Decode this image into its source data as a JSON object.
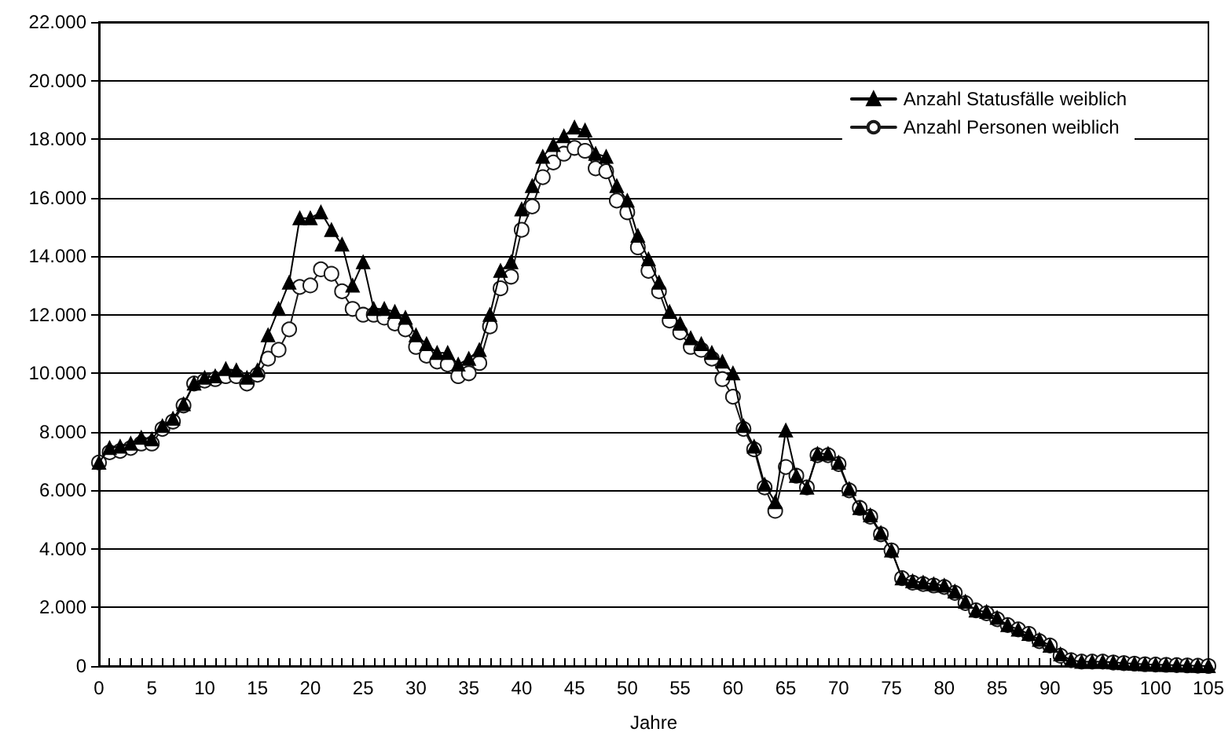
{
  "chart_data": {
    "type": "line",
    "xlabel": "Jahre",
    "x": [
      0,
      1,
      2,
      3,
      4,
      5,
      6,
      7,
      8,
      9,
      10,
      11,
      12,
      13,
      14,
      15,
      16,
      17,
      18,
      19,
      20,
      21,
      22,
      23,
      24,
      25,
      26,
      27,
      28,
      29,
      30,
      31,
      32,
      33,
      34,
      35,
      36,
      37,
      38,
      39,
      40,
      41,
      42,
      43,
      44,
      45,
      46,
      47,
      48,
      49,
      50,
      51,
      52,
      53,
      54,
      55,
      56,
      57,
      58,
      59,
      60,
      61,
      62,
      63,
      64,
      65,
      66,
      67,
      68,
      69,
      70,
      71,
      72,
      73,
      74,
      75,
      76,
      77,
      78,
      79,
      80,
      81,
      82,
      83,
      84,
      85,
      86,
      87,
      88,
      89,
      90,
      91,
      92,
      93,
      94,
      95,
      96,
      97,
      98,
      99,
      100,
      101,
      102,
      103,
      104,
      105
    ],
    "series": [
      {
        "name": "Anzahl Statusfälle weiblich",
        "color": "#000000",
        "marker": "triangle",
        "values": [
          6950,
          7450,
          7500,
          7600,
          7800,
          7750,
          8200,
          8450,
          8950,
          9650,
          9850,
          9900,
          10150,
          10100,
          9850,
          10100,
          11300,
          12200,
          13100,
          15300,
          15300,
          15500,
          14900,
          14400,
          13000,
          13800,
          12200,
          12200,
          12100,
          11900,
          11300,
          11000,
          10700,
          10700,
          10300,
          10500,
          10800,
          12000,
          13500,
          13800,
          15600,
          16400,
          17400,
          17800,
          18100,
          18400,
          18300,
          17500,
          17400,
          16400,
          15900,
          14700,
          13900,
          13100,
          12100,
          11700,
          11200,
          11000,
          10700,
          10400,
          10000,
          8200,
          7500,
          6200,
          5600,
          8050,
          6500,
          6100,
          7250,
          7250,
          6950,
          6050,
          5400,
          5150,
          4550,
          3950,
          3000,
          2900,
          2850,
          2800,
          2750,
          2550,
          2200,
          1900,
          1850,
          1650,
          1400,
          1250,
          1100,
          900,
          700,
          400,
          200,
          150,
          150,
          150,
          130,
          100,
          80,
          60,
          50,
          40,
          30,
          20,
          10,
          0
        ]
      },
      {
        "name": "Anzahl Personen weiblich",
        "color": "#1a1a1a",
        "marker": "circle",
        "values": [
          6950,
          7300,
          7350,
          7450,
          7600,
          7600,
          8100,
          8350,
          8900,
          9650,
          9750,
          9800,
          9900,
          9900,
          9650,
          9950,
          10500,
          10800,
          11500,
          12950,
          13000,
          13550,
          13400,
          12800,
          12200,
          12000,
          12000,
          11900,
          11700,
          11500,
          10900,
          10600,
          10400,
          10300,
          9900,
          10000,
          10350,
          11600,
          12900,
          13300,
          14900,
          15700,
          16700,
          17200,
          17500,
          17700,
          17600,
          17000,
          16900,
          15900,
          15500,
          14300,
          13500,
          12800,
          11800,
          11400,
          10900,
          10800,
          10500,
          9800,
          9200,
          8100,
          7400,
          6100,
          5300,
          6800,
          6500,
          6100,
          7200,
          7200,
          6900,
          6000,
          5400,
          5100,
          4500,
          3950,
          3000,
          2850,
          2800,
          2750,
          2700,
          2500,
          2150,
          1900,
          1800,
          1600,
          1400,
          1250,
          1100,
          850,
          700,
          350,
          200,
          150,
          150,
          150,
          120,
          100,
          80,
          60,
          50,
          40,
          30,
          20,
          10,
          0
        ]
      }
    ],
    "xlim": [
      0,
      105
    ],
    "xticks": [
      0,
      5,
      10,
      15,
      20,
      25,
      30,
      35,
      40,
      45,
      50,
      55,
      60,
      65,
      70,
      75,
      80,
      85,
      90,
      95,
      100,
      105
    ],
    "ylim": [
      0,
      22000
    ],
    "yticks": [
      {
        "value": 0,
        "label": "0"
      },
      {
        "value": 2000,
        "label": "2.000"
      },
      {
        "value": 4000,
        "label": "4.000"
      },
      {
        "value": 6000,
        "label": "6.000"
      },
      {
        "value": 8000,
        "label": "8.000"
      },
      {
        "value": 10000,
        "label": "10.000"
      },
      {
        "value": 12000,
        "label": "12.000"
      },
      {
        "value": 14000,
        "label": "14.000"
      },
      {
        "value": 16000,
        "label": "16.000"
      },
      {
        "value": 18000,
        "label": "18.000"
      },
      {
        "value": 20000,
        "label": "20.000"
      },
      {
        "value": 22000,
        "label": "22.000"
      }
    ],
    "grid": "y",
    "legend": "top right",
    "line_style": "solid"
  }
}
